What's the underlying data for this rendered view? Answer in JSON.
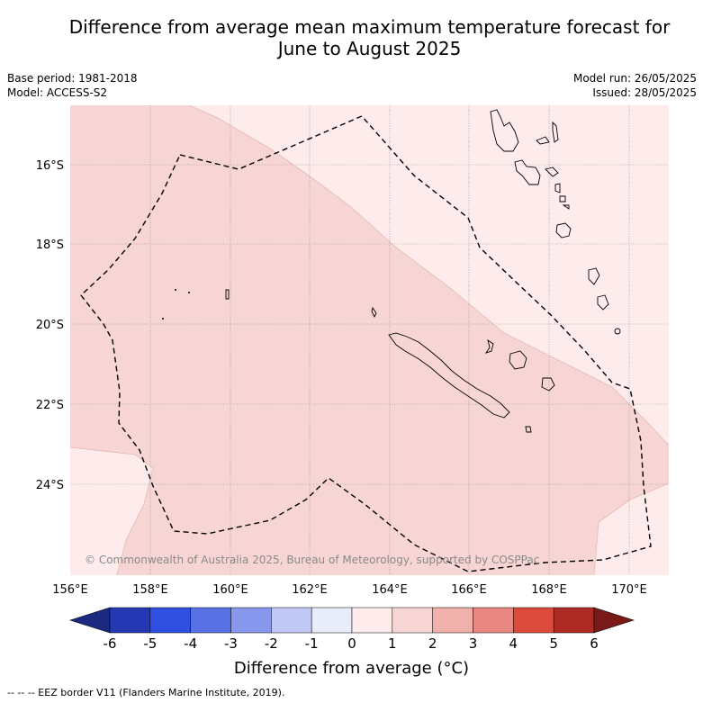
{
  "title_line1": "Difference from average mean maximum temperature forecast for",
  "title_line2": "June to August 2025",
  "base_period": "Base period: 1981-2018",
  "model": "Model: ACCESS-S2",
  "model_run": "Model run: 26/05/2025",
  "issued": "Issued: 28/05/2025",
  "copyright": "© Commonwealth of Australia 2025, Bureau of Meteorology, supported by COSPPac",
  "lon_ticks": [
    "156°E",
    "158°E",
    "160°E",
    "162°E",
    "164°E",
    "166°E",
    "168°E",
    "170°E"
  ],
  "lat_ticks": [
    "16°S",
    "18°S",
    "20°S",
    "22°S",
    "24°S"
  ],
  "colorbar": {
    "title": "Difference from average (°C)",
    "ticks": [
      "-6",
      "-5",
      "-4",
      "-3",
      "-2",
      "-1",
      "0",
      "1",
      "2",
      "3",
      "4",
      "5",
      "6"
    ],
    "colors": [
      "#1b2a80",
      "#2438b4",
      "#2f4fe0",
      "#5872e6",
      "#8797eb",
      "#c2c8f5",
      "#e8ecfb",
      "#fdeceb",
      "#f6d5d4",
      "#f0b0ab",
      "#e88880",
      "#dc4a3c",
      "#ae2a24",
      "#7a1a18"
    ]
  },
  "footnote": "-- -- -- EEZ border V11 (Flanders Marine Institute, 2019).",
  "map_fill_colors": {
    "band_0_1": "#fdeceb",
    "band_1_2": "#f6d5d4"
  }
}
